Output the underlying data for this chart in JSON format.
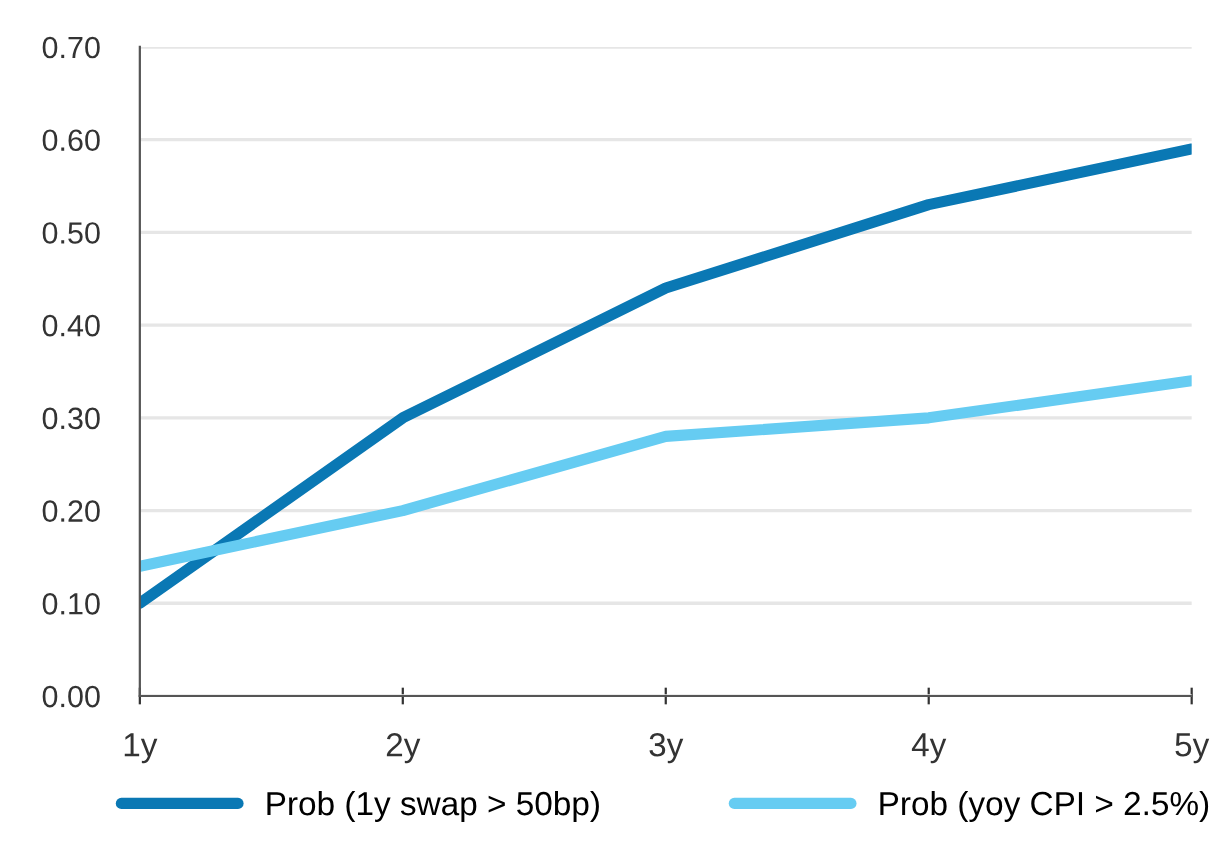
{
  "chart_data": {
    "type": "line",
    "categories": [
      "1y",
      "2y",
      "3y",
      "4y",
      "5y"
    ],
    "series": [
      {
        "name": "Prob (1y swap > 50bp)",
        "color": "#0a78b4",
        "values": [
          0.1,
          0.3,
          0.44,
          0.53,
          0.59
        ]
      },
      {
        "name": "Prob (yoy CPI > 2.5%)",
        "color": "#66ccf2",
        "values": [
          0.14,
          0.2,
          0.28,
          0.3,
          0.34
        ]
      }
    ],
    "ylim": [
      0,
      0.7
    ],
    "yticks": [
      {
        "value": 0,
        "label": "0.00"
      },
      {
        "value": 0.1,
        "label": "0.10"
      },
      {
        "value": 0.2,
        "label": "0.20"
      },
      {
        "value": 0.3,
        "label": "0.30"
      },
      {
        "value": 0.4,
        "label": "0.40"
      },
      {
        "value": 0.5,
        "label": "0.50"
      },
      {
        "value": 0.6,
        "label": "0.60"
      },
      {
        "value": 0.7,
        "label": "0.70"
      }
    ],
    "grid": "y",
    "legend": "bottom",
    "marker": "none",
    "line_style": "solid"
  }
}
